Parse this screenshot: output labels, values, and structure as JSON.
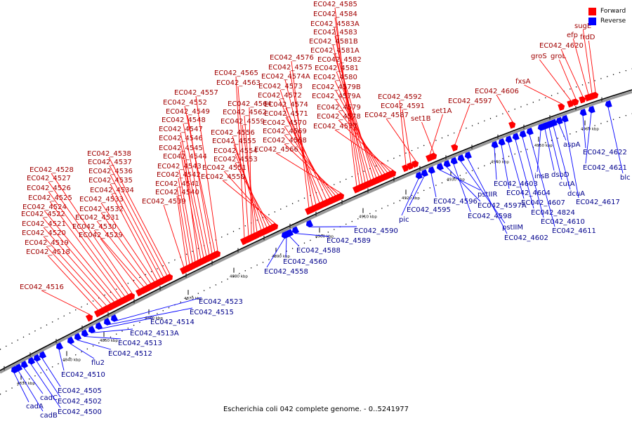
{
  "caption": "Escherichia coli 042 complete genome. - 0..5241977",
  "legend": {
    "forward_label": "Forward",
    "reverse_label": "Reverse",
    "forward_color": "#ff0000",
    "reverse_color": "#0000ff"
  },
  "axis": {
    "unit": "kbp",
    "ticks": [
      "4830 kbp",
      "4840 kbp",
      "4850 kbp",
      "4860 kbp",
      "4870 kbp",
      "4880 kbp",
      "4890 kbp",
      "4900 kbp",
      "4910 kbp",
      "4920 kbp",
      "4930 kbp",
      "4940 kbp",
      "4950 kbp",
      "4960 kbp"
    ]
  },
  "genes": {
    "forward": [
      "EC042_4516",
      "EC042_4518",
      "EC042_4519",
      "EC042_4520",
      "EC042_4521",
      "EC042_4522",
      "EC042_4524",
      "EC042_4525",
      "EC042_4526",
      "EC042_4527",
      "EC042_4528",
      "EC042_4529",
      "EC042_4530",
      "EC042_4531",
      "EC042_4532",
      "EC042_4533",
      "EC042_4534",
      "EC042_4535",
      "EC042_4536",
      "EC042_4537",
      "EC042_4538",
      "EC042_4539",
      "EC042_4540",
      "EC042_4541",
      "EC042_4542",
      "EC042_4543",
      "EC042_4544",
      "EC042_4545",
      "EC042_4546",
      "EC042_4547",
      "EC042_4548",
      "EC042_4549",
      "EC042_4552",
      "EC042_4557",
      "EC042_4565",
      "EC042_4563",
      "EC042_4564",
      "EC042_4562",
      "EC042_4559",
      "EC042_4556",
      "EC042_4555",
      "EC042_4554",
      "EC042_4553",
      "EC042_4551",
      "EC042_4550",
      "EC042_4576",
      "EC042_4575",
      "EC042_4574A",
      "EC042_4573",
      "EC042_4572",
      "EC042_4574",
      "EC042_4571",
      "EC042_4570",
      "EC042_4569",
      "EC042_4568",
      "EC042_4566",
      "EC042_4585",
      "EC042_4584",
      "EC042_4583A",
      "EC042_4583",
      "EC042_4581B",
      "EC042_4581A",
      "EC042_4582",
      "EC042_4581",
      "EC042_4580",
      "EC042_4579B",
      "EC042_4579A",
      "EC042_4579",
      "EC042_4578",
      "EC042_4577",
      "EC042_4592",
      "EC042_4591",
      "EC042_4587",
      "set1A",
      "set1B",
      "EC042_4597",
      "EC042_4606",
      "fxsA",
      "groS",
      "groL",
      "EC042_4620",
      "efp",
      "sugE",
      "frdD"
    ],
    "reverse": [
      "cadA",
      "cadB",
      "cadC",
      "EC042_4500",
      "EC042_4502",
      "EC042_4505",
      "EC042_4510",
      "flu2",
      "EC042_4512",
      "EC042_4513",
      "EC042_4513A",
      "EC042_4514",
      "EC042_4515",
      "EC042_4523",
      "EC042_4558",
      "EC042_4560",
      "EC042_4588",
      "EC042_4589",
      "EC042_4590",
      "pic",
      "EC042_4595",
      "EC042_4596",
      "pstIIR",
      "EC042_4597A",
      "EC042_4598",
      "pstIIM",
      "EC042_4602",
      "EC042_4603",
      "EC042_4604",
      "EC042_4607",
      "EC042_4824",
      "EC042_4610",
      "EC042_4611",
      "insB",
      "dsbD",
      "cutA",
      "dcuA",
      "aspA",
      "EC042_4617",
      "EC042_4622",
      "EC042_4621",
      "blc"
    ]
  }
}
